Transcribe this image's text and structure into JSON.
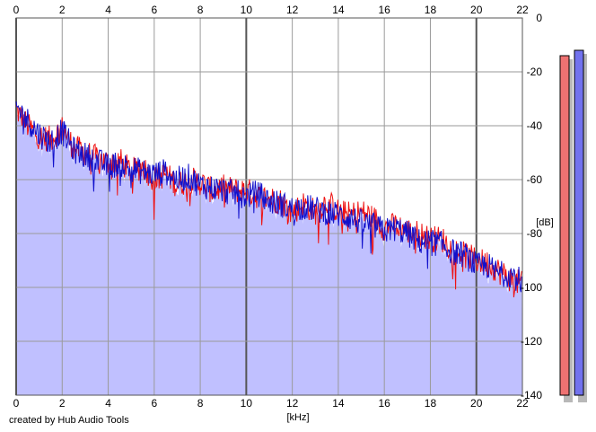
{
  "chart_data": {
    "type": "area",
    "xlabel": "[kHz]",
    "ylabel": "[dB]",
    "xlim": [
      0,
      22
    ],
    "ylim": [
      -140,
      0
    ],
    "x_ticks": [
      "0",
      "2",
      "4",
      "6",
      "8",
      "10",
      "12",
      "14",
      "16",
      "18",
      "20",
      "22"
    ],
    "y_ticks": [
      "0",
      "-20",
      "-40",
      "-60",
      "-80",
      "-100",
      "-120",
      "-140"
    ],
    "grid": true,
    "series": [
      {
        "channel": "left",
        "color": "#ee1111",
        "x": [
          0,
          0.5,
          1,
          1.5,
          2,
          2.5,
          3,
          3.5,
          4,
          4.5,
          5,
          5.5,
          6,
          6.5,
          7,
          7.5,
          8,
          8.5,
          9,
          9.5,
          10,
          10.5,
          11,
          11.5,
          12,
          12.5,
          13,
          13.5,
          14,
          14.5,
          15,
          15.5,
          16,
          16.5,
          17,
          17.5,
          18,
          18.5,
          19,
          19.5,
          20,
          20.5,
          21,
          21.5,
          22
        ],
        "values": [
          -34,
          -40,
          -44,
          -45,
          -41,
          -48,
          -50,
          -52,
          -54,
          -53,
          -57,
          -55,
          -60,
          -58,
          -62,
          -60,
          -61,
          -64,
          -63,
          -64,
          -64,
          -66,
          -67,
          -68,
          -72,
          -69,
          -72,
          -68,
          -72,
          -73,
          -72,
          -74,
          -78,
          -77,
          -79,
          -80,
          -82,
          -82,
          -86,
          -88,
          -90,
          -91,
          -94,
          -97,
          -99
        ]
      },
      {
        "channel": "right",
        "color": "#1111cc",
        "x": [
          0,
          0.5,
          1,
          1.5,
          2,
          2.5,
          3,
          3.5,
          4,
          4.5,
          5,
          5.5,
          6,
          6.5,
          7,
          7.5,
          8,
          8.5,
          9,
          9.5,
          10,
          10.5,
          11,
          11.5,
          12,
          12.5,
          13,
          13.5,
          14,
          14.5,
          15,
          15.5,
          16,
          16.5,
          17,
          17.5,
          18,
          18.5,
          19,
          19.5,
          20,
          20.5,
          21,
          21.5,
          22
        ],
        "values": [
          -33,
          -38,
          -43,
          -46,
          -42,
          -49,
          -51,
          -53,
          -55,
          -54,
          -56,
          -57,
          -58,
          -57,
          -60,
          -59,
          -62,
          -63,
          -64,
          -65,
          -66,
          -65,
          -68,
          -69,
          -71,
          -70,
          -71,
          -72,
          -73,
          -74,
          -76,
          -77,
          -79,
          -78,
          -80,
          -83,
          -83,
          -84,
          -87,
          -88,
          -92,
          -92,
          -95,
          -95,
          -98
        ]
      }
    ],
    "fill_color": "#c0c0ff"
  },
  "level_meters": [
    {
      "channel": "left",
      "color": "#ee7272",
      "level_db": -14
    },
    {
      "channel": "right",
      "color": "#7272ee",
      "level_db": -12
    }
  ],
  "credit": "created by Hub Audio Tools"
}
